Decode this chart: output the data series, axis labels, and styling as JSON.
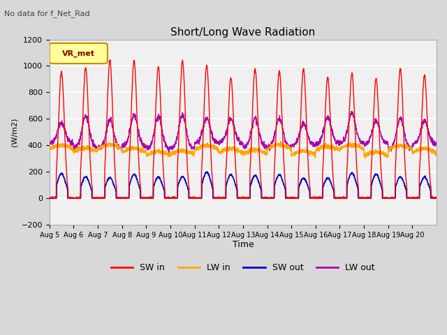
{
  "title": "Short/Long Wave Radiation",
  "subtitle": "No data for f_Net_Rad",
  "xlabel": "Time",
  "ylabel": "(W/m2)",
  "ylim": [
    -200,
    1200
  ],
  "yticks": [
    -200,
    0,
    200,
    400,
    600,
    800,
    1000,
    1200
  ],
  "legend_label": "VR_met",
  "series_labels": [
    "SW in",
    "LW in",
    "SW out",
    "LW out"
  ],
  "series_colors": [
    "#ff0000",
    "#ffa500",
    "#0000cc",
    "#aa00aa"
  ],
  "x_tick_labels": [
    "Aug 5",
    "Aug 6",
    "Aug 7",
    "Aug 8",
    "Aug 9",
    "Aug 10",
    "Aug 11",
    "Aug 12",
    "Aug 13",
    "Aug 14",
    "Aug 15",
    "Aug 16",
    "Aug 17",
    "Aug 18",
    "Aug 19",
    "Aug 20"
  ],
  "n_days": 16,
  "background_color": "#e8e8e8",
  "plot_bg_color": "#f0f0f0",
  "grid_color": "#ffffff"
}
